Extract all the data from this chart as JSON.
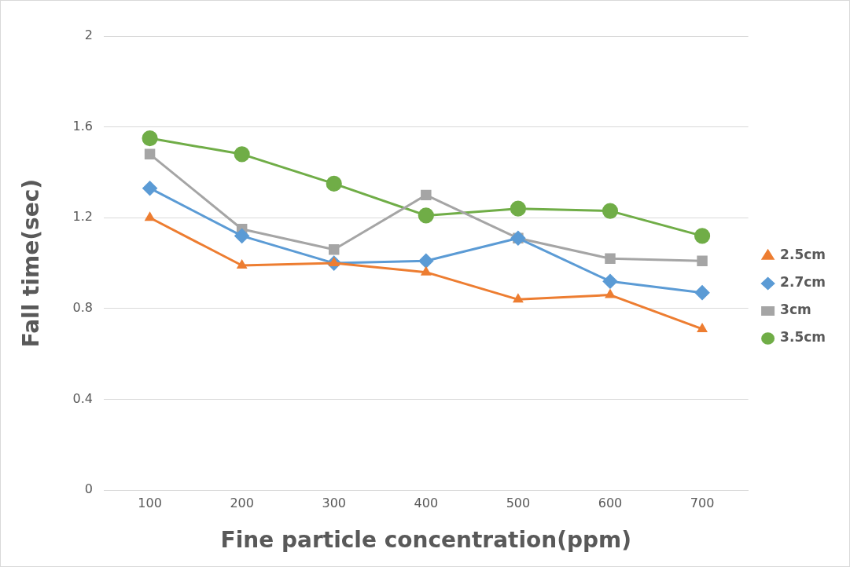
{
  "chart_data": {
    "type": "line",
    "xlabel": "Fine particle concentration(ppm)",
    "ylabel": "Fall time(sec)",
    "categories": [
      "100",
      "200",
      "300",
      "400",
      "500",
      "600",
      "700"
    ],
    "series": [
      {
        "name": "2.5cm",
        "color": "#ed7d31",
        "marker": "triangle",
        "values": [
          1.2,
          0.99,
          1.0,
          0.96,
          0.84,
          0.86,
          0.71
        ]
      },
      {
        "name": "2.7cm",
        "color": "#5b9bd5",
        "marker": "diamond",
        "values": [
          1.33,
          1.12,
          1.0,
          1.01,
          1.11,
          0.92,
          0.87
        ]
      },
      {
        "name": "3cm",
        "color": "#a5a5a5",
        "marker": "square",
        "values": [
          1.48,
          1.15,
          1.06,
          1.3,
          1.11,
          1.02,
          1.01
        ]
      },
      {
        "name": "3.5cm",
        "color": "#70ad47",
        "marker": "circle",
        "values": [
          1.55,
          1.48,
          1.35,
          1.21,
          1.24,
          1.23,
          1.12
        ]
      }
    ],
    "ylim": [
      0,
      2
    ],
    "yticks": [
      0,
      0.4,
      0.8,
      1.2,
      1.6,
      2
    ],
    "grid": "y",
    "legend": "right",
    "line_style": "solid"
  }
}
